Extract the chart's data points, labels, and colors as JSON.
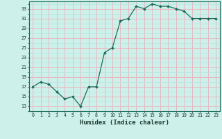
{
  "x": [
    0,
    1,
    2,
    3,
    4,
    5,
    6,
    7,
    8,
    9,
    10,
    11,
    12,
    13,
    14,
    15,
    16,
    17,
    18,
    19,
    20,
    21,
    22,
    23
  ],
  "y": [
    17,
    18,
    17.5,
    16,
    14.5,
    15,
    13,
    17,
    17,
    24,
    25,
    30.5,
    31,
    33.5,
    33,
    34,
    33.5,
    33.5,
    33,
    32.5,
    31,
    31,
    31,
    31
  ],
  "line_color": "#1a6b5a",
  "marker": "D",
  "marker_size": 2.0,
  "bg_color": "#cef0ea",
  "grid_minor_color": "#b0e8e0",
  "grid_major_color": "#e8b8c0",
  "xlabel": "Humidex (Indice chaleur)",
  "yticks": [
    13,
    15,
    17,
    19,
    21,
    23,
    25,
    27,
    29,
    31,
    33
  ],
  "xticks": [
    0,
    1,
    2,
    3,
    4,
    5,
    6,
    7,
    8,
    9,
    10,
    11,
    12,
    13,
    14,
    15,
    16,
    17,
    18,
    19,
    20,
    21,
    22,
    23
  ],
  "ylim": [
    12.0,
    34.5
  ],
  "xlim": [
    -0.5,
    23.5
  ]
}
